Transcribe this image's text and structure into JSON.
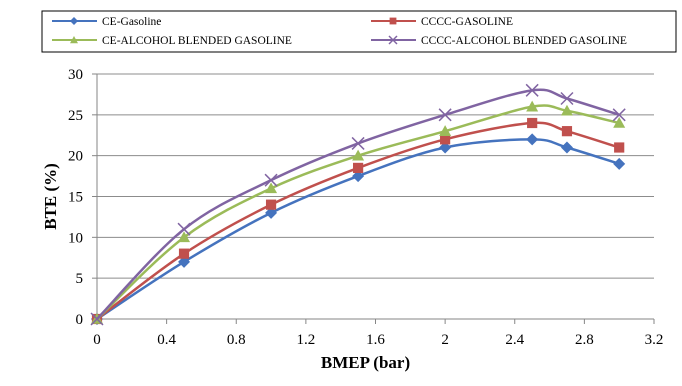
{
  "chart_data": {
    "type": "line",
    "xlabel": "BMEP (bar)",
    "ylabel": "BTE (%)",
    "xlim": [
      0,
      3.2
    ],
    "ylim": [
      0,
      30
    ],
    "x_ticks": [
      "0",
      "0.4",
      "0.8",
      "1.2",
      "1.6",
      "2",
      "2.4",
      "2.8",
      "3.2"
    ],
    "y_ticks": [
      "0",
      "5",
      "10",
      "15",
      "20",
      "25",
      "30"
    ],
    "grid": "horizontal",
    "legend_position": "top",
    "x": [
      0,
      0.5,
      1.0,
      1.5,
      2.0,
      2.5,
      2.7,
      3.0
    ],
    "series": [
      {
        "name": "CE-Gasoline",
        "color": "#4573be",
        "marker": "diamond",
        "values": [
          0,
          7,
          13,
          17.5,
          21,
          22,
          21,
          19
        ]
      },
      {
        "name": "CCCC-GASOLINE",
        "color": "#c0504d",
        "marker": "square",
        "values": [
          0,
          8,
          14,
          18.5,
          22,
          24,
          23,
          21
        ]
      },
      {
        "name": "CE-ALCOHOL BLENDED GASOLINE",
        "color": "#9bbb59",
        "marker": "triangle",
        "values": [
          0,
          10,
          16,
          20,
          23,
          26,
          25.5,
          24
        ]
      },
      {
        "name": "CCCC-ALCOHOL BLENDED GASOLINE",
        "color": "#8064a2",
        "marker": "x",
        "values": [
          0,
          11,
          17,
          21.5,
          25,
          28,
          27,
          25
        ]
      }
    ]
  }
}
